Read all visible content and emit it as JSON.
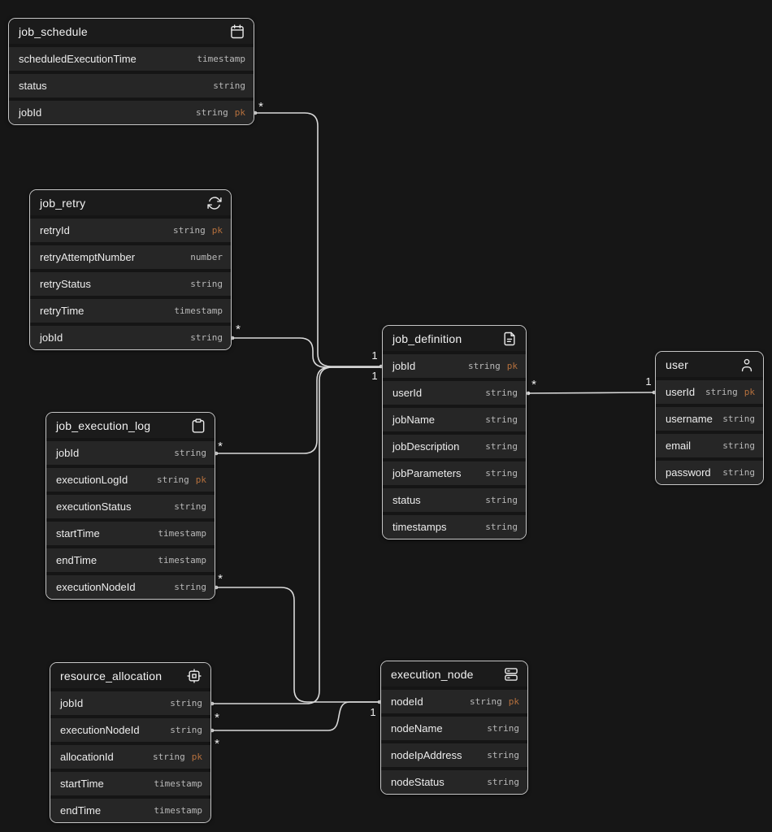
{
  "diagram": {
    "entities": [
      {
        "name": "job_schedule",
        "icon": "calendar-icon",
        "attributes": [
          {
            "name": "scheduledExecutionTime",
            "type": "timestamp",
            "key": ""
          },
          {
            "name": "status",
            "type": "string",
            "key": ""
          },
          {
            "name": "jobId",
            "type": "string",
            "key": "pk"
          }
        ]
      },
      {
        "name": "job_retry",
        "icon": "refresh-icon",
        "attributes": [
          {
            "name": "retryId",
            "type": "string",
            "key": "pk"
          },
          {
            "name": "retryAttemptNumber",
            "type": "number",
            "key": ""
          },
          {
            "name": "retryStatus",
            "type": "string",
            "key": ""
          },
          {
            "name": "retryTime",
            "type": "timestamp",
            "key": ""
          },
          {
            "name": "jobId",
            "type": "string",
            "key": ""
          }
        ]
      },
      {
        "name": "job_execution_log",
        "icon": "clipboard-icon",
        "attributes": [
          {
            "name": "jobId",
            "type": "string",
            "key": ""
          },
          {
            "name": "executionLogId",
            "type": "string",
            "key": "pk"
          },
          {
            "name": "executionStatus",
            "type": "string",
            "key": ""
          },
          {
            "name": "startTime",
            "type": "timestamp",
            "key": ""
          },
          {
            "name": "endTime",
            "type": "timestamp",
            "key": ""
          },
          {
            "name": "executionNodeId",
            "type": "string",
            "key": ""
          }
        ]
      },
      {
        "name": "resource_allocation",
        "icon": "cpu-icon",
        "attributes": [
          {
            "name": "jobId",
            "type": "string",
            "key": ""
          },
          {
            "name": "executionNodeId",
            "type": "string",
            "key": ""
          },
          {
            "name": "allocationId",
            "type": "string",
            "key": "pk"
          },
          {
            "name": "startTime",
            "type": "timestamp",
            "key": ""
          },
          {
            "name": "endTime",
            "type": "timestamp",
            "key": ""
          }
        ]
      },
      {
        "name": "job_definition",
        "icon": "document-icon",
        "attributes": [
          {
            "name": "jobId",
            "type": "string",
            "key": "pk"
          },
          {
            "name": "userId",
            "type": "string",
            "key": ""
          },
          {
            "name": "jobName",
            "type": "string",
            "key": ""
          },
          {
            "name": "jobDescription",
            "type": "string",
            "key": ""
          },
          {
            "name": "jobParameters",
            "type": "string",
            "key": ""
          },
          {
            "name": "status",
            "type": "string",
            "key": ""
          },
          {
            "name": "timestamps",
            "type": "string",
            "key": ""
          }
        ]
      },
      {
        "name": "user",
        "icon": "person-icon",
        "attributes": [
          {
            "name": "userId",
            "type": "string",
            "key": "pk"
          },
          {
            "name": "username",
            "type": "string",
            "key": ""
          },
          {
            "name": "email",
            "type": "string",
            "key": ""
          },
          {
            "name": "password",
            "type": "string",
            "key": ""
          }
        ]
      },
      {
        "name": "execution_node",
        "icon": "server-icon",
        "attributes": [
          {
            "name": "nodeId",
            "type": "string",
            "key": "pk"
          },
          {
            "name": "nodeName",
            "type": "string",
            "key": ""
          },
          {
            "name": "nodeIpAddress",
            "type": "string",
            "key": ""
          },
          {
            "name": "nodeStatus",
            "type": "string",
            "key": ""
          }
        ]
      }
    ],
    "relationships": [
      {
        "from": "job_schedule.jobId",
        "to": "job_definition.jobId",
        "from_card": "*",
        "to_card": "1"
      },
      {
        "from": "job_retry.jobId",
        "to": "job_definition.jobId",
        "from_card": "*",
        "to_card": "1"
      },
      {
        "from": "job_execution_log.jobId",
        "to": "job_definition.jobId",
        "from_card": "*",
        "to_card": "1"
      },
      {
        "from": "resource_allocation.jobId",
        "to": "job_definition.jobId",
        "from_card": "*",
        "to_card": "1"
      },
      {
        "from": "job_definition.userId",
        "to": "user.userId",
        "from_card": "*",
        "to_card": "1"
      },
      {
        "from": "job_execution_log.executionNodeId",
        "to": "execution_node.nodeId",
        "from_card": "*",
        "to_card": "1"
      },
      {
        "from": "resource_allocation.executionNodeId",
        "to": "execution_node.nodeId",
        "from_card": "*",
        "to_card": "1"
      }
    ],
    "colors": {
      "background": "#161616",
      "row_bg": "#262626",
      "header_bg": "#1b1b1b",
      "table_border": "#c6c6c6",
      "text": "#ededed",
      "type_text": "#b9b9b9",
      "primary_key": "#b5703d",
      "line": "#d9d9d9"
    }
  }
}
